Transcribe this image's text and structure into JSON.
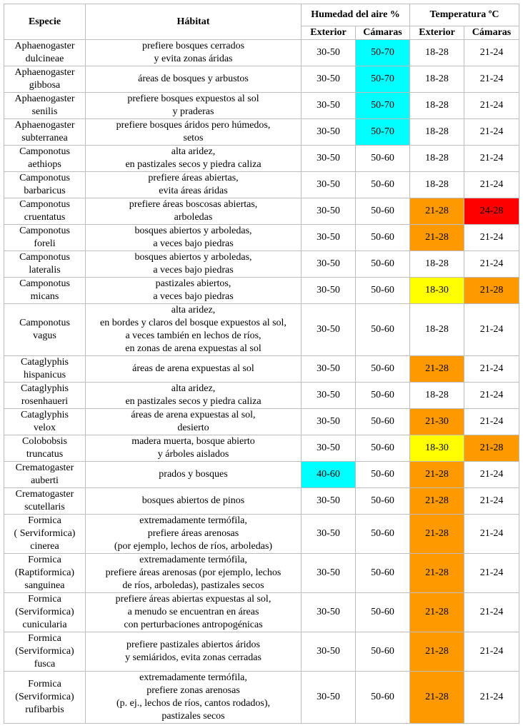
{
  "headers": {
    "species": "Especie",
    "habitat": "Hábitat",
    "humidity": "Humedad del aire %",
    "temperature": "Temperatura ºC",
    "exterior": "Exterior",
    "chambers": "Cámaras"
  },
  "colors": {
    "cyan": "#00ffff",
    "orange": "#ff9900",
    "yellow": "#ffff00",
    "red": "#ff0000"
  },
  "rows": [
    {
      "species": "Aphaenogaster\ndulcineae",
      "habitat": "prefiere bosques cerrados\ny evita zonas áridas",
      "hum_ext": "30-50",
      "hum_cam": "50-70",
      "temp_ext": "18-28",
      "temp_cam": "21-24",
      "hum_ext_color": "",
      "hum_cam_color": "cyan",
      "temp_ext_color": "",
      "temp_cam_color": ""
    },
    {
      "species": "Aphaenogaster\ngibbosa",
      "habitat": "áreas de bosques y arbustos",
      "hum_ext": "30-50",
      "hum_cam": "50-70",
      "temp_ext": "18-28",
      "temp_cam": "21-24",
      "hum_ext_color": "",
      "hum_cam_color": "cyan",
      "temp_ext_color": "",
      "temp_cam_color": ""
    },
    {
      "species": "Aphaenogaster\nsenilis",
      "habitat": "prefiere bosques expuestos al sol\ny praderas",
      "hum_ext": "30-50",
      "hum_cam": "50-70",
      "temp_ext": "18-28",
      "temp_cam": "21-24",
      "hum_ext_color": "",
      "hum_cam_color": "cyan",
      "temp_ext_color": "",
      "temp_cam_color": ""
    },
    {
      "species": "Aphaenogaster\nsubterranea",
      "habitat": "prefiere bosques áridos pero húmedos,\nsetos",
      "hum_ext": "30-50",
      "hum_cam": "50-70",
      "temp_ext": "18-28",
      "temp_cam": "21-24",
      "hum_ext_color": "",
      "hum_cam_color": "cyan",
      "temp_ext_color": "",
      "temp_cam_color": ""
    },
    {
      "species": "Camponotus\naethiops",
      "habitat": "alta aridez,\nen pastizales secos y piedra caliza",
      "hum_ext": "30-50",
      "hum_cam": "50-60",
      "temp_ext": "18-28",
      "temp_cam": "21-24",
      "hum_ext_color": "",
      "hum_cam_color": "",
      "temp_ext_color": "",
      "temp_cam_color": ""
    },
    {
      "species": "Camponotus\nbarbaricus",
      "habitat": "prefiere áreas abiertas,\nevita áreas áridas",
      "hum_ext": "30-50",
      "hum_cam": "50-60",
      "temp_ext": "18-28",
      "temp_cam": "21-24",
      "hum_ext_color": "",
      "hum_cam_color": "",
      "temp_ext_color": "",
      "temp_cam_color": ""
    },
    {
      "species": "Camponotus\ncruentatus",
      "habitat": "prefiere áreas boscosas abiertas,\narboledas",
      "hum_ext": "30-50",
      "hum_cam": "50-60",
      "temp_ext": "21-28",
      "temp_cam": "24-28",
      "hum_ext_color": "",
      "hum_cam_color": "",
      "temp_ext_color": "orange",
      "temp_cam_color": "red"
    },
    {
      "species": "Camponotus\nforeli",
      "habitat": "bosques abiertos y arboledas,\na veces bajo piedras",
      "hum_ext": "30-50",
      "hum_cam": "50-60",
      "temp_ext": "21-28",
      "temp_cam": "21-24",
      "hum_ext_color": "",
      "hum_cam_color": "",
      "temp_ext_color": "orange",
      "temp_cam_color": ""
    },
    {
      "species": "Camponotus\nlateralis",
      "habitat": "bosques abiertos y arboledas,\na veces bajo piedras",
      "hum_ext": "30-50",
      "hum_cam": "50-60",
      "temp_ext": "18-28",
      "temp_cam": "21-24",
      "hum_ext_color": "",
      "hum_cam_color": "",
      "temp_ext_color": "",
      "temp_cam_color": ""
    },
    {
      "species": "Camponotus\nmicans",
      "habitat": "pastizales abiertos,\na veces bajo piedras",
      "hum_ext": "30-50",
      "hum_cam": "50-60",
      "temp_ext": "18-30",
      "temp_cam": "21-28",
      "hum_ext_color": "",
      "hum_cam_color": "",
      "temp_ext_color": "yellow",
      "temp_cam_color": "orange"
    },
    {
      "species": "Camponotus\nvagus",
      "habitat": "alta aridez,\nen bordes y claros del bosque expuestos al sol,\na veces también en lechos de ríos,\nen zonas de arena expuestas al sol",
      "hum_ext": "30-50",
      "hum_cam": "50-60",
      "temp_ext": "18-28",
      "temp_cam": "21-24",
      "hum_ext_color": "",
      "hum_cam_color": "",
      "temp_ext_color": "",
      "temp_cam_color": ""
    },
    {
      "species": "Cataglyphis\nhispanicus",
      "habitat": "áreas de arena expuestas al sol",
      "hum_ext": "30-50",
      "hum_cam": "50-60",
      "temp_ext": "21-28",
      "temp_cam": "21-24",
      "hum_ext_color": "",
      "hum_cam_color": "",
      "temp_ext_color": "orange",
      "temp_cam_color": ""
    },
    {
      "species": "Cataglyphis\nrosenhaueri",
      "habitat": "alta aridez,\nen pastizales secos y piedra caliza",
      "hum_ext": "30-50",
      "hum_cam": "50-60",
      "temp_ext": "18-28",
      "temp_cam": "21-24",
      "hum_ext_color": "",
      "hum_cam_color": "",
      "temp_ext_color": "",
      "temp_cam_color": ""
    },
    {
      "species": "Cataglyphis\nvelox",
      "habitat": "áreas de arena expuestas al sol,\ndesierto",
      "hum_ext": "30-50",
      "hum_cam": "50-60",
      "temp_ext": "21-30",
      "temp_cam": "21-24",
      "hum_ext_color": "",
      "hum_cam_color": "",
      "temp_ext_color": "orange",
      "temp_cam_color": ""
    },
    {
      "species": "Colobobsis\ntruncatus",
      "habitat": "madera muerta, bosque abierto\ny árboles aislados",
      "hum_ext": "30-50",
      "hum_cam": "50-60",
      "temp_ext": "18-30",
      "temp_cam": "21-28",
      "hum_ext_color": "",
      "hum_cam_color": "",
      "temp_ext_color": "yellow",
      "temp_cam_color": "orange"
    },
    {
      "species": "Crematogaster\nauberti",
      "habitat": "prados y bosques",
      "hum_ext": "40-60",
      "hum_cam": "50-60",
      "temp_ext": "21-28",
      "temp_cam": "21-24",
      "hum_ext_color": "cyan",
      "hum_cam_color": "",
      "temp_ext_color": "orange",
      "temp_cam_color": ""
    },
    {
      "species": "Crematogaster\nscutellaris",
      "habitat": "bosques abiertos de pinos",
      "hum_ext": "30-50",
      "hum_cam": "50-60",
      "temp_ext": "21-28",
      "temp_cam": "21-24",
      "hum_ext_color": "",
      "hum_cam_color": "",
      "temp_ext_color": "orange",
      "temp_cam_color": ""
    },
    {
      "species": "Formica\n( Serviformica)\ncinerea",
      "habitat": "extremadamente termófila,\nprefiere áreas arenosas\n(por ejemplo, lechos de ríos, arboledas)",
      "hum_ext": "30-50",
      "hum_cam": "50-60",
      "temp_ext": "21-28",
      "temp_cam": "21-24",
      "hum_ext_color": "",
      "hum_cam_color": "",
      "temp_ext_color": "orange",
      "temp_cam_color": ""
    },
    {
      "species": "Formica\n(Raptiformica)\nsanguinea",
      "habitat": "extremadamente termófila,\nprefiere áreas arenosas (por ejemplo, lechos\nde ríos, arboledas), pastizales secos",
      "hum_ext": "30-50",
      "hum_cam": "50-60",
      "temp_ext": "21-28",
      "temp_cam": "21-24",
      "hum_ext_color": "",
      "hum_cam_color": "",
      "temp_ext_color": "orange",
      "temp_cam_color": ""
    },
    {
      "species": "Formica\n(Serviformica)\ncunicularia",
      "habitat": "prefiere áreas abiertas expuestas al sol,\na menudo se encuentran en áreas\ncon perturbaciones antropogénicas",
      "hum_ext": "30-50",
      "hum_cam": "50-60",
      "temp_ext": "21-28",
      "temp_cam": "21-24",
      "hum_ext_color": "",
      "hum_cam_color": "",
      "temp_ext_color": "orange",
      "temp_cam_color": ""
    },
    {
      "species": "Formica\n(Serviformica)\nfusca",
      "habitat": "prefiere pastizales abiertos áridos\ny semiáridos, evita zonas cerradas",
      "hum_ext": "30-50",
      "hum_cam": "50-60",
      "temp_ext": "21-28",
      "temp_cam": "21-24",
      "hum_ext_color": "",
      "hum_cam_color": "",
      "temp_ext_color": "orange",
      "temp_cam_color": ""
    },
    {
      "species": "Formica\n(Serviformica)\nrufibarbis",
      "habitat": "extremadamente termófila,\nprefiere zonas arenosas\n(p. ej., lechos de ríos, cantos rodados),\npastizales secos",
      "hum_ext": "30-50",
      "hum_cam": "50-60",
      "temp_ext": "21-28",
      "temp_cam": "21-24",
      "hum_ext_color": "",
      "hum_cam_color": "",
      "temp_ext_color": "orange",
      "temp_cam_color": ""
    }
  ]
}
